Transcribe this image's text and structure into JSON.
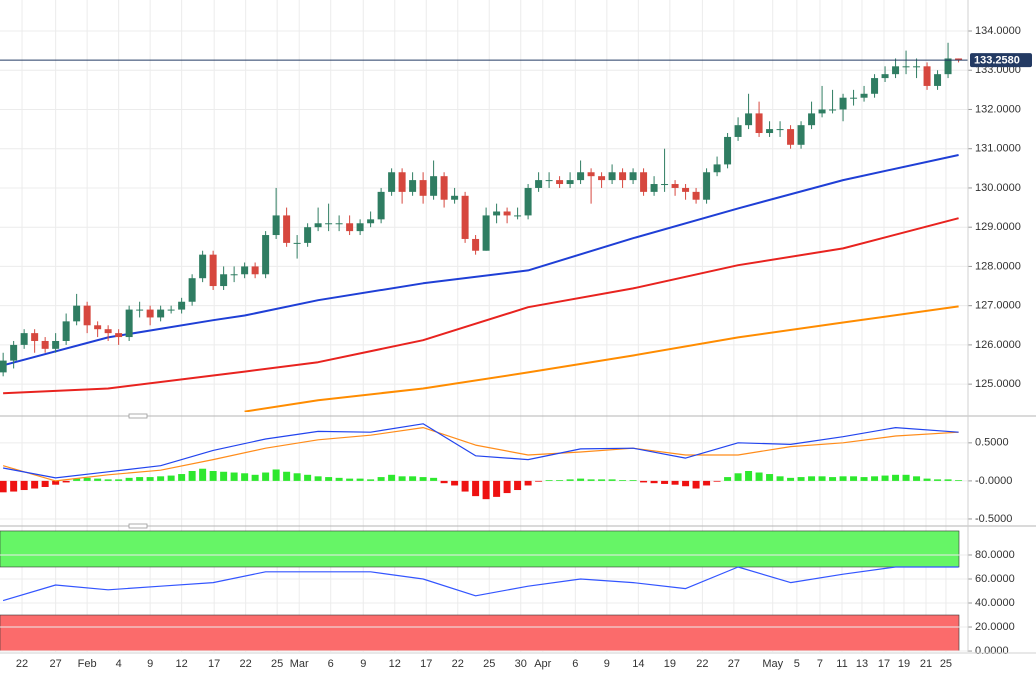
{
  "chart_data": [
    {
      "type": "candlestick",
      "xlim": [
        -0.3,
        91.9
      ],
      "ylim": [
        124.29,
        134.79
      ],
      "yticks": [
        {
          "value": 125,
          "label": "125.0000"
        },
        {
          "value": 126,
          "label": "126.0000"
        },
        {
          "value": 127,
          "label": "127.0000"
        },
        {
          "value": 128,
          "label": "128.0000"
        },
        {
          "value": 129,
          "label": "129.0000"
        },
        {
          "value": 130,
          "label": "130.0000"
        },
        {
          "value": 131,
          "label": "131.0000"
        },
        {
          "value": 132,
          "label": "132.0000"
        },
        {
          "value": 133,
          "label": "133.0000"
        },
        {
          "value": 134,
          "label": "134.0000"
        }
      ],
      "grid": true,
      "up_color": "#2f7d62",
      "down_color": "#d6473e",
      "open": [
        125.3,
        125.6,
        126.0,
        126.3,
        126.1,
        125.9,
        126.1,
        126.6,
        127.0,
        126.5,
        126.4,
        126.3,
        126.2,
        126.9,
        126.9,
        126.7,
        126.9,
        126.9,
        127.1,
        127.7,
        128.3,
        127.5,
        127.8,
        127.8,
        128.0,
        127.8,
        128.8,
        129.3,
        128.6,
        128.6,
        129.0,
        129.1,
        129.1,
        129.1,
        128.9,
        129.1,
        129.2,
        129.9,
        130.4,
        129.9,
        130.2,
        129.8,
        130.3,
        129.7,
        129.8,
        128.7,
        128.4,
        129.3,
        129.4,
        129.3,
        129.3,
        130.0,
        130.2,
        130.2,
        130.1,
        130.2,
        130.4,
        130.3,
        130.2,
        130.4,
        130.2,
        130.4,
        129.9,
        130.1,
        130.1,
        130.0,
        129.9,
        129.7,
        130.4,
        130.6,
        131.3,
        131.6,
        131.9,
        131.4,
        131.5,
        131.5,
        131.1,
        131.6,
        131.9,
        132.0,
        132.0,
        132.3,
        132.3,
        132.4,
        132.8,
        132.9,
        133.1,
        133.1,
        133.1,
        132.6,
        132.9,
        133.3
      ],
      "high": [
        125.8,
        126.1,
        126.4,
        126.4,
        126.2,
        126.3,
        126.8,
        127.3,
        127.1,
        126.6,
        126.5,
        126.4,
        127.0,
        127.1,
        127.0,
        127.0,
        127.0,
        127.2,
        127.8,
        128.4,
        128.4,
        128.0,
        128.0,
        128.1,
        128.1,
        128.9,
        130.0,
        129.5,
        128.8,
        129.1,
        129.5,
        129.6,
        129.3,
        129.3,
        129.2,
        129.4,
        130.0,
        130.5,
        130.5,
        130.4,
        130.4,
        130.7,
        130.4,
        130.0,
        129.9,
        128.8,
        129.5,
        129.6,
        129.5,
        129.5,
        130.1,
        130.4,
        130.4,
        130.3,
        130.4,
        130.7,
        130.5,
        130.4,
        130.6,
        130.5,
        130.5,
        130.5,
        130.3,
        131.0,
        130.2,
        130.1,
        130.0,
        130.5,
        130.8,
        131.4,
        131.8,
        132.4,
        132.2,
        131.7,
        131.7,
        131.6,
        131.7,
        132.2,
        132.6,
        132.5,
        132.4,
        132.5,
        132.6,
        132.9,
        133.1,
        133.3,
        133.5,
        133.3,
        133.2,
        133.0,
        133.7,
        133.3
      ],
      "low": [
        125.2,
        125.4,
        125.9,
        125.8,
        125.8,
        125.8,
        126.0,
        126.5,
        126.3,
        126.2,
        126.1,
        126.0,
        126.1,
        126.7,
        126.5,
        126.6,
        126.8,
        126.8,
        127.0,
        127.6,
        127.4,
        127.4,
        127.6,
        127.7,
        127.7,
        127.7,
        128.7,
        128.5,
        128.2,
        128.5,
        128.9,
        128.9,
        128.9,
        128.8,
        128.8,
        129.0,
        129.1,
        129.8,
        129.6,
        129.8,
        129.6,
        129.7,
        129.5,
        129.6,
        128.6,
        128.3,
        128.4,
        129.1,
        129.1,
        129.2,
        129.2,
        129.9,
        130.0,
        130.0,
        130.0,
        130.1,
        129.6,
        130.0,
        130.1,
        130.0,
        130.1,
        129.8,
        129.8,
        129.9,
        129.8,
        129.7,
        129.6,
        129.6,
        130.3,
        130.5,
        131.2,
        131.5,
        131.3,
        131.3,
        131.3,
        131.0,
        131.0,
        131.5,
        131.8,
        131.9,
        131.7,
        132.1,
        132.2,
        132.3,
        132.7,
        132.8,
        132.9,
        132.8,
        132.5,
        132.5,
        132.8,
        133.2
      ],
      "close": [
        125.6,
        126.0,
        126.3,
        126.1,
        125.9,
        126.1,
        126.6,
        127.0,
        126.5,
        126.4,
        126.3,
        126.2,
        126.9,
        126.9,
        126.7,
        126.9,
        126.9,
        127.1,
        127.7,
        128.3,
        127.5,
        127.8,
        127.8,
        128.0,
        127.8,
        128.8,
        129.3,
        128.6,
        128.6,
        129.0,
        129.1,
        129.1,
        129.1,
        128.9,
        129.1,
        129.2,
        129.9,
        130.4,
        129.9,
        130.2,
        129.8,
        130.3,
        129.7,
        129.8,
        128.7,
        128.4,
        129.3,
        129.4,
        129.3,
        129.3,
        130.0,
        130.2,
        130.2,
        130.1,
        130.2,
        130.4,
        130.3,
        130.2,
        130.4,
        130.2,
        130.4,
        129.9,
        130.1,
        130.1,
        130.0,
        129.9,
        129.7,
        130.4,
        130.6,
        131.3,
        131.6,
        131.9,
        131.4,
        131.5,
        131.5,
        131.1,
        131.6,
        131.9,
        132.0,
        132.0,
        132.3,
        132.3,
        132.4,
        132.8,
        132.9,
        133.1,
        133.1,
        133.1,
        132.6,
        132.9,
        133.3,
        133.26
      ],
      "last_price": {
        "value": 133.258,
        "label": "133.2580"
      },
      "last_price_color": "#233a63",
      "ma_x": [
        0,
        10,
        20,
        23,
        30,
        40,
        50,
        60,
        70,
        80,
        91
      ],
      "series": [
        {
          "color": "#1f3fd6",
          "values": [
            125.48,
            126.19,
            126.63,
            126.75,
            127.14,
            127.57,
            127.9,
            128.72,
            129.48,
            130.2,
            130.84
          ]
        },
        {
          "color": "#e8231f",
          "values": [
            124.77,
            124.89,
            125.22,
            125.32,
            125.56,
            126.12,
            126.96,
            127.44,
            128.03,
            128.46,
            129.23
          ]
        },
        {
          "color": "#ff8c00",
          "values": [
            null,
            null,
            null,
            124.3,
            124.59,
            124.89,
            125.3,
            125.73,
            126.19,
            126.57,
            126.98
          ]
        }
      ]
    },
    {
      "type": "macd",
      "ylim": [
        -0.54,
        0.8
      ],
      "yticks": [
        {
          "value": -0.5,
          "label": "-0.5000"
        },
        {
          "value": 0,
          "label": "-0.0000"
        },
        {
          "value": 0.5,
          "label": "0.5000"
        }
      ],
      "x": [
        0,
        5,
        10,
        15,
        20,
        25,
        30,
        35,
        40,
        45,
        50,
        55,
        60,
        65,
        70,
        75,
        80,
        85,
        91
      ],
      "series": [
        {
          "color": "#2244ee",
          "values": [
            0.17,
            0.04,
            0.12,
            0.2,
            0.4,
            0.55,
            0.65,
            0.64,
            0.75,
            0.33,
            0.28,
            0.42,
            0.43,
            0.3,
            0.5,
            0.48,
            0.58,
            0.7,
            0.64
          ]
        },
        {
          "color": "#ff8c1a",
          "values": [
            0.2,
            0.0,
            0.08,
            0.14,
            0.28,
            0.43,
            0.54,
            0.6,
            0.7,
            0.47,
            0.34,
            0.38,
            0.43,
            0.34,
            0.34,
            0.45,
            0.5,
            0.59,
            0.64
          ]
        }
      ],
      "histogram": [
        -0.15,
        -0.14,
        -0.12,
        -0.1,
        -0.08,
        -0.05,
        -0.02,
        0.03,
        0.04,
        0.03,
        0.02,
        0.02,
        0.04,
        0.05,
        0.05,
        0.06,
        0.07,
        0.09,
        0.13,
        0.16,
        0.13,
        0.12,
        0.11,
        0.1,
        0.08,
        0.11,
        0.15,
        0.12,
        0.1,
        0.08,
        0.06,
        0.05,
        0.04,
        0.03,
        0.03,
        0.02,
        0.05,
        0.08,
        0.06,
        0.06,
        0.05,
        0.04,
        -0.03,
        -0.06,
        -0.14,
        -0.2,
        -0.24,
        -0.21,
        -0.16,
        -0.12,
        -0.06,
        -0.01,
        0.01,
        0.01,
        0.02,
        0.03,
        0.02,
        0.02,
        0.02,
        0.01,
        0.01,
        -0.02,
        -0.03,
        -0.04,
        -0.05,
        -0.07,
        -0.1,
        -0.06,
        -0.01,
        0.05,
        0.1,
        0.13,
        0.11,
        0.09,
        0.06,
        0.04,
        0.05,
        0.06,
        0.06,
        0.05,
        0.06,
        0.06,
        0.05,
        0.06,
        0.07,
        0.08,
        0.08,
        0.06,
        0.03,
        0.02,
        0.02,
        0.01
      ],
      "positive_color": "#2ee82e",
      "negative_color": "#ee1111"
    },
    {
      "type": "rsi",
      "ylim": [
        -0.8,
        100.8
      ],
      "yticks": [
        {
          "value": 0,
          "label": "0.0000"
        },
        {
          "value": 20,
          "label": "20.0000"
        },
        {
          "value": 40,
          "label": "40.0000"
        },
        {
          "value": 60,
          "label": "60.0000"
        },
        {
          "value": 80,
          "label": "80.0000"
        }
      ],
      "overbought": [
        70,
        100
      ],
      "overbought_color": "#66f566",
      "oversold": [
        0,
        30
      ],
      "oversold_color": "#fb6b6b",
      "x": [
        0,
        5,
        10,
        15,
        20,
        25,
        30,
        35,
        40,
        45,
        50,
        55,
        60,
        65,
        70,
        75,
        80,
        85,
        91
      ],
      "series": [
        {
          "color": "#3355ff",
          "values": [
            42,
            55,
            51,
            54,
            57,
            66,
            66,
            66,
            60,
            46,
            54,
            60,
            57,
            52,
            70,
            57,
            64,
            70,
            70
          ]
        }
      ],
      "xticks": [
        {
          "value": 1.8,
          "label": "22"
        },
        {
          "value": 5,
          "label": "27"
        },
        {
          "value": 8,
          "label": "Feb"
        },
        {
          "value": 11,
          "label": "4"
        },
        {
          "value": 14,
          "label": "9"
        },
        {
          "value": 17,
          "label": "12"
        },
        {
          "value": 20.1,
          "label": "17"
        },
        {
          "value": 23.1,
          "label": "22"
        },
        {
          "value": 26.1,
          "label": "25"
        },
        {
          "value": 28.2,
          "label": "Mar"
        },
        {
          "value": 31.2,
          "label": "6"
        },
        {
          "value": 34.3,
          "label": "9"
        },
        {
          "value": 37.3,
          "label": "12"
        },
        {
          "value": 40.3,
          "label": "17"
        },
        {
          "value": 43.3,
          "label": "22"
        },
        {
          "value": 46.3,
          "label": "25"
        },
        {
          "value": 49.3,
          "label": "30"
        },
        {
          "value": 51.4,
          "label": "Apr"
        },
        {
          "value": 54.5,
          "label": "6"
        },
        {
          "value": 57.5,
          "label": "9"
        },
        {
          "value": 60.5,
          "label": "14"
        },
        {
          "value": 63.5,
          "label": "19"
        },
        {
          "value": 66.6,
          "label": "22"
        },
        {
          "value": 69.6,
          "label": "27"
        },
        {
          "value": 73.3,
          "label": "May"
        },
        {
          "value": 75.6,
          "label": "5"
        },
        {
          "value": 77.8,
          "label": "7"
        },
        {
          "value": 79.9,
          "label": "11"
        },
        {
          "value": 81.8,
          "label": "13"
        },
        {
          "value": 83.9,
          "label": "17"
        },
        {
          "value": 85.8,
          "label": "19"
        },
        {
          "value": 87.9,
          "label": "21"
        },
        {
          "value": 89.8,
          "label": "25"
        }
      ]
    }
  ]
}
